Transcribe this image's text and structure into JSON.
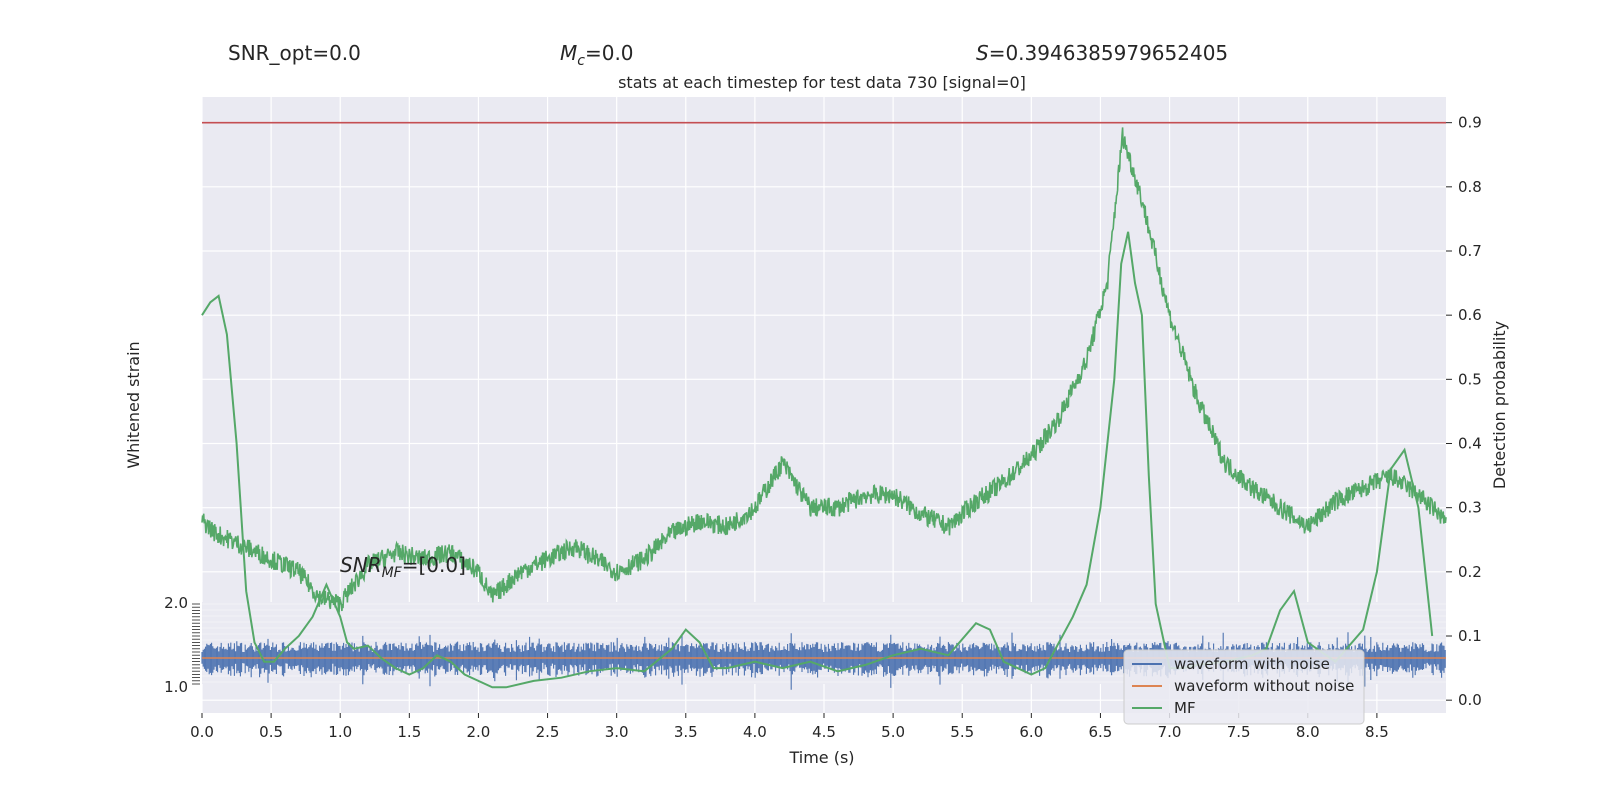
{
  "header": {
    "snr_opt": "SNR_opt=0.0",
    "mc_symbol": "M",
    "mc_sub": "c",
    "mc_value": "=0.0",
    "s_symbol": "S",
    "s_value": "=0.3946385979652405",
    "subtitle": "stats at each timestep for test data 730 [signal=0]",
    "snr_mf_symbol": "SNR",
    "snr_mf_sub": "MF",
    "snr_mf_value": "=[0.0]"
  },
  "colors": {
    "plot_bg": "#eaeaf2",
    "grid": "#ffffff",
    "noise": "#4c72b0",
    "clean": "#dd8452",
    "mf": "#55a868",
    "threshold": "#c44e52",
    "text": "#262626"
  },
  "chart_data": {
    "type": "line",
    "xlabel": "Time (s)",
    "ylabel_left": "Whitened strain",
    "ylabel_right": "Detection probability",
    "xlim": [
      0,
      9
    ],
    "ylim_right": [
      -0.02,
      0.94
    ],
    "x_ticks": [
      "0.0",
      "0.5",
      "1.0",
      "1.5",
      "2.0",
      "2.5",
      "3.0",
      "3.5",
      "4.0",
      "4.5",
      "5.0",
      "5.5",
      "6.0",
      "6.5",
      "7.0",
      "7.5",
      "8.0",
      "8.5"
    ],
    "x_tick_values": [
      0,
      0.5,
      1,
      1.5,
      2,
      2.5,
      3,
      3.5,
      4,
      4.5,
      5,
      5.5,
      6,
      6.5,
      7,
      7.5,
      8,
      8.5
    ],
    "y_ticks_right": [
      "0.0",
      "0.1",
      "0.2",
      "0.3",
      "0.4",
      "0.5",
      "0.6",
      "0.7",
      "0.8",
      "0.9"
    ],
    "y_tick_values_right": [
      0,
      0.1,
      0.2,
      0.3,
      0.4,
      0.5,
      0.6,
      0.7,
      0.8,
      0.9
    ],
    "y_ticks_left_top": "2.0",
    "y_ticks_left_bottom": "1.0",
    "threshold": 0.9,
    "legend": {
      "position": "lower right",
      "entries": [
        "waveform with noise",
        "waveform without noise",
        "MF"
      ]
    },
    "mf_series": {
      "x": [
        0,
        0.06,
        0.12,
        0.18,
        0.25,
        0.32,
        0.38,
        0.45,
        0.52,
        0.6,
        0.7,
        0.8,
        0.9,
        1.0,
        1.05,
        1.1,
        1.2,
        1.3,
        1.4,
        1.5,
        1.6,
        1.7,
        1.8,
        1.9,
        2.0,
        2.1,
        2.2,
        2.4,
        2.6,
        2.8,
        3.0,
        3.2,
        3.4,
        3.5,
        3.6,
        3.7,
        3.8,
        3.9,
        4.0,
        4.1,
        4.2,
        4.4,
        4.6,
        4.8,
        5.0,
        5.2,
        5.4,
        5.6,
        5.7,
        5.8,
        6.0,
        6.1,
        6.2,
        6.3,
        6.4,
        6.5,
        6.6,
        6.65,
        6.7,
        6.75,
        6.8,
        6.85,
        6.9,
        7.0,
        7.1,
        7.2,
        7.4,
        7.6,
        7.7,
        7.8,
        7.9,
        8.0,
        8.2,
        8.4,
        8.5,
        8.6,
        8.7,
        8.8,
        8.9
      ],
      "y": [
        0.6,
        0.62,
        0.63,
        0.57,
        0.4,
        0.17,
        0.09,
        0.06,
        0.06,
        0.08,
        0.1,
        0.13,
        0.18,
        0.13,
        0.09,
        0.08,
        0.085,
        0.065,
        0.05,
        0.04,
        0.05,
        0.07,
        0.06,
        0.04,
        0.03,
        0.02,
        0.02,
        0.03,
        0.035,
        0.045,
        0.05,
        0.045,
        0.08,
        0.11,
        0.09,
        0.05,
        0.05,
        0.055,
        0.06,
        0.055,
        0.05,
        0.06,
        0.045,
        0.055,
        0.07,
        0.08,
        0.07,
        0.12,
        0.11,
        0.06,
        0.04,
        0.05,
        0.09,
        0.13,
        0.18,
        0.3,
        0.5,
        0.68,
        0.73,
        0.65,
        0.6,
        0.35,
        0.15,
        0.05,
        0.05,
        0.055,
        0.06,
        0.07,
        0.08,
        0.14,
        0.17,
        0.09,
        0.06,
        0.11,
        0.2,
        0.36,
        0.39,
        0.3,
        0.1
      ],
      "name": "MF"
    },
    "prob_series": {
      "x": [
        0,
        0.1,
        0.3,
        0.5,
        0.7,
        0.85,
        1.0,
        1.2,
        1.4,
        1.6,
        1.8,
        2.0,
        2.1,
        2.3,
        2.5,
        2.7,
        3.0,
        3.2,
        3.4,
        3.6,
        3.8,
        4.0,
        4.2,
        4.4,
        4.6,
        4.8,
        5.0,
        5.2,
        5.4,
        5.6,
        5.8,
        6.0,
        6.2,
        6.4,
        6.55,
        6.66,
        6.8,
        7.0,
        7.2,
        7.4,
        7.6,
        7.8,
        8.0,
        8.2,
        8.4,
        8.6,
        8.8,
        9.0
      ],
      "y": [
        0.28,
        0.26,
        0.24,
        0.22,
        0.2,
        0.16,
        0.15,
        0.21,
        0.23,
        0.22,
        0.23,
        0.2,
        0.16,
        0.2,
        0.22,
        0.24,
        0.2,
        0.22,
        0.26,
        0.28,
        0.27,
        0.3,
        0.37,
        0.3,
        0.3,
        0.32,
        0.32,
        0.29,
        0.27,
        0.31,
        0.34,
        0.38,
        0.44,
        0.53,
        0.65,
        0.88,
        0.78,
        0.6,
        0.47,
        0.37,
        0.33,
        0.3,
        0.27,
        0.31,
        0.33,
        0.35,
        0.32,
        0.28
      ]
    }
  }
}
